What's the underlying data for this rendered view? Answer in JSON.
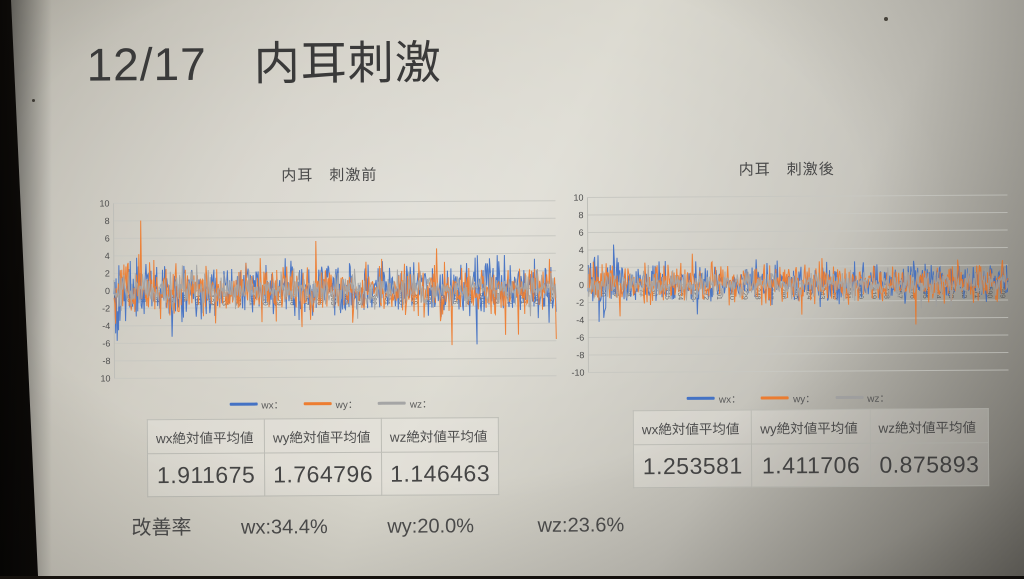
{
  "slide_title": "12/17　内耳刺激",
  "colors": {
    "series_blue": "#4472C4",
    "series_orange": "#ED7D31",
    "series_gray": "#A5A5A5",
    "screen_light": "#d9d7cd",
    "text_dark": "#3c3c3c"
  },
  "chart_data": [
    {
      "type": "line",
      "title": "内耳　刺激前",
      "xlabel": "",
      "ylabel": "",
      "ylim": [
        -10,
        10
      ],
      "ytick_step": 2,
      "n_points": 620,
      "x_label_start": 1,
      "x_label_step": 19,
      "grid": true,
      "legend_position": "bottom",
      "series": [
        {
          "name": "wx：",
          "color": "#4472C4",
          "mean_abs": 1.911675,
          "amplitude": 4.5,
          "burst": 1.1,
          "seed": 101
        },
        {
          "name": "wy：",
          "color": "#ED7D31",
          "mean_abs": 1.764796,
          "amplitude": 4.2,
          "burst": 0.5,
          "seed": 202
        },
        {
          "name": "wz：",
          "color": "#A5A5A5",
          "mean_abs": 1.146463,
          "amplitude": 2.7,
          "burst": 0.2,
          "seed": 303
        }
      ]
    },
    {
      "type": "line",
      "title": "内耳　刺激後",
      "xlabel": "",
      "ylabel": "",
      "ylim": [
        -10,
        10
      ],
      "ytick_step": 2,
      "n_points": 620,
      "x_label_start": 1,
      "x_label_step": 19,
      "grid": true,
      "legend_position": "bottom",
      "series": [
        {
          "name": "wx：",
          "color": "#4472C4",
          "mean_abs": 1.253581,
          "amplitude": 2.9,
          "burst": 2.6,
          "seed": 404
        },
        {
          "name": "wy：",
          "color": "#ED7D31",
          "mean_abs": 1.411706,
          "amplitude": 3.1,
          "burst": 1.3,
          "seed": 505
        },
        {
          "name": "wz：",
          "color": "#A5A5A5",
          "mean_abs": 0.875893,
          "amplitude": 2.1,
          "burst": 0.7,
          "seed": 606
        }
      ]
    }
  ],
  "tables": [
    {
      "headers": [
        "wx絶対値平均値",
        "wy絶対値平均値",
        "wz絶対値平均値"
      ],
      "values": [
        "1.911675",
        "1.764796",
        "1.146463"
      ]
    },
    {
      "headers": [
        "wx絶対値平均値",
        "wy絶対値平均値",
        "wz絶対値平均値"
      ],
      "values": [
        "1.253581",
        "1.411706",
        "0.875893"
      ]
    }
  ],
  "improvement": {
    "label": "改善率",
    "items": [
      "wx:34.4%",
      "wy:20.0%",
      "wz:23.6%"
    ]
  }
}
